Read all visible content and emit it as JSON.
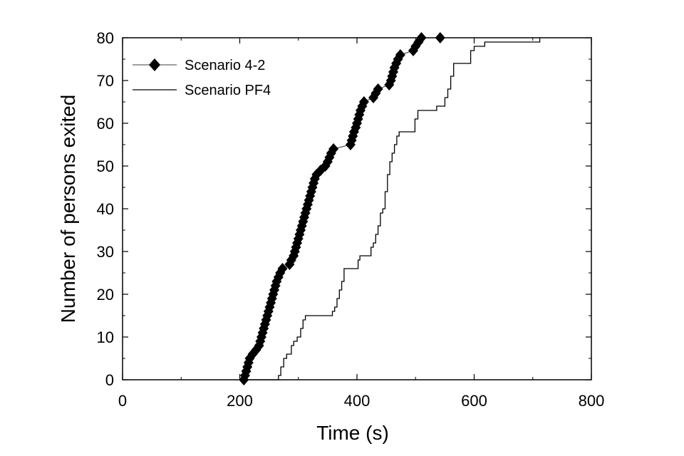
{
  "chart_data": {
    "type": "line",
    "title": "",
    "xlabel": "Time (s)",
    "ylabel": "Number of persons exited",
    "xlim": [
      0,
      800
    ],
    "ylim": [
      0,
      80
    ],
    "xticks": [
      0,
      200,
      400,
      600,
      800
    ],
    "yticks": [
      0,
      10,
      20,
      30,
      40,
      50,
      60,
      70,
      80
    ],
    "grid": false,
    "legend_position": "top-left",
    "series": [
      {
        "name": "Scenario 4-2",
        "style": "line-with-diamond-markers",
        "color": "#000000",
        "points": [
          [
            207,
            0
          ],
          [
            209,
            1
          ],
          [
            211,
            2
          ],
          [
            213,
            3
          ],
          [
            215,
            4
          ],
          [
            217,
            5
          ],
          [
            222,
            6
          ],
          [
            228,
            7
          ],
          [
            233,
            8
          ],
          [
            235,
            9
          ],
          [
            237,
            10
          ],
          [
            239,
            11
          ],
          [
            241,
            12
          ],
          [
            243,
            13
          ],
          [
            245,
            14
          ],
          [
            247,
            15
          ],
          [
            249,
            16
          ],
          [
            251,
            17
          ],
          [
            253,
            18
          ],
          [
            255,
            19
          ],
          [
            257,
            20
          ],
          [
            259,
            21
          ],
          [
            261,
            22
          ],
          [
            263,
            23
          ],
          [
            266,
            24
          ],
          [
            269,
            25
          ],
          [
            273,
            26
          ],
          [
            285,
            27
          ],
          [
            288,
            28
          ],
          [
            292,
            29
          ],
          [
            294,
            30
          ],
          [
            296,
            31
          ],
          [
            298,
            32
          ],
          [
            300,
            33
          ],
          [
            302,
            34
          ],
          [
            304,
            35
          ],
          [
            306,
            36
          ],
          [
            308,
            37
          ],
          [
            310,
            38
          ],
          [
            312,
            39
          ],
          [
            314,
            40
          ],
          [
            316,
            41
          ],
          [
            318,
            42
          ],
          [
            320,
            43
          ],
          [
            322,
            44
          ],
          [
            324,
            45
          ],
          [
            326,
            46
          ],
          [
            328,
            47
          ],
          [
            331,
            48
          ],
          [
            338,
            49
          ],
          [
            346,
            50
          ],
          [
            350,
            51
          ],
          [
            353,
            52
          ],
          [
            356,
            53
          ],
          [
            360,
            54
          ],
          [
            389,
            55
          ],
          [
            391,
            56
          ],
          [
            393,
            57
          ],
          [
            395,
            58
          ],
          [
            398,
            59
          ],
          [
            400,
            60
          ],
          [
            402,
            61
          ],
          [
            404,
            62
          ],
          [
            406,
            63
          ],
          [
            409,
            64
          ],
          [
            412,
            65
          ],
          [
            428,
            66
          ],
          [
            432,
            67
          ],
          [
            436,
            68
          ],
          [
            455,
            69
          ],
          [
            458,
            70
          ],
          [
            460,
            71
          ],
          [
            462,
            72
          ],
          [
            464,
            73
          ],
          [
            467,
            74
          ],
          [
            470,
            75
          ],
          [
            474,
            76
          ],
          [
            496,
            77
          ],
          [
            500,
            78
          ],
          [
            505,
            79
          ],
          [
            510,
            80
          ],
          [
            542,
            80
          ]
        ]
      },
      {
        "name": "Scenario PF4",
        "style": "step-line",
        "color": "#000000",
        "points": [
          [
            262,
            0
          ],
          [
            266,
            1
          ],
          [
            270,
            3
          ],
          [
            275,
            5
          ],
          [
            280,
            6
          ],
          [
            288,
            8
          ],
          [
            292,
            9
          ],
          [
            298,
            10
          ],
          [
            304,
            12
          ],
          [
            308,
            14
          ],
          [
            312,
            15
          ],
          [
            353,
            15
          ],
          [
            358,
            16
          ],
          [
            362,
            17
          ],
          [
            366,
            19
          ],
          [
            370,
            21
          ],
          [
            374,
            23
          ],
          [
            378,
            26
          ],
          [
            398,
            26
          ],
          [
            402,
            28
          ],
          [
            405,
            29
          ],
          [
            420,
            29
          ],
          [
            424,
            31
          ],
          [
            428,
            32
          ],
          [
            432,
            34
          ],
          [
            436,
            36
          ],
          [
            440,
            39
          ],
          [
            444,
            40
          ],
          [
            448,
            44
          ],
          [
            452,
            48
          ],
          [
            456,
            51
          ],
          [
            460,
            53
          ],
          [
            464,
            55
          ],
          [
            468,
            57
          ],
          [
            472,
            58
          ],
          [
            495,
            58
          ],
          [
            499,
            61
          ],
          [
            504,
            63
          ],
          [
            530,
            63
          ],
          [
            536,
            64
          ],
          [
            545,
            64
          ],
          [
            550,
            66
          ],
          [
            555,
            68
          ],
          [
            560,
            71
          ],
          [
            565,
            74
          ],
          [
            590,
            74
          ],
          [
            594,
            77
          ],
          [
            600,
            78
          ],
          [
            614,
            78
          ],
          [
            618,
            79
          ],
          [
            708,
            79
          ],
          [
            712,
            80
          ]
        ]
      }
    ]
  }
}
